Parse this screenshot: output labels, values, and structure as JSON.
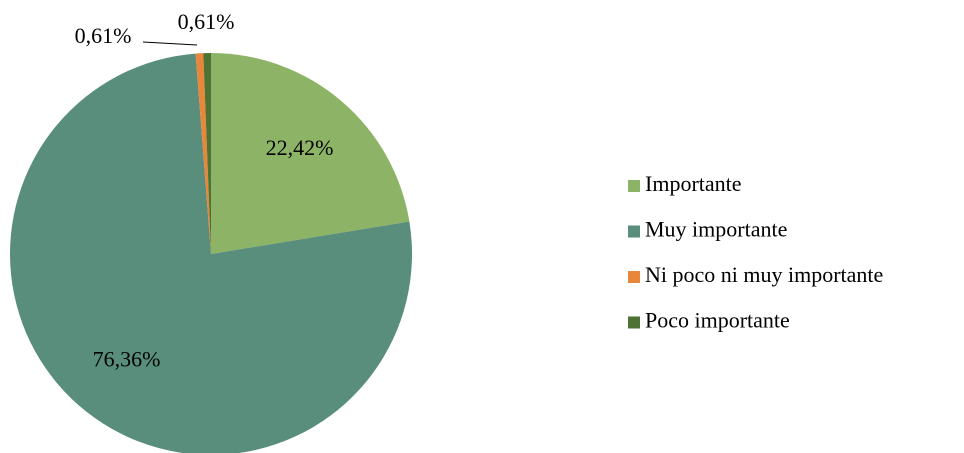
{
  "chart_data": {
    "type": "pie",
    "categories": [
      "Importante",
      "Muy importante",
      "Ni poco ni muy importante",
      "Poco importante"
    ],
    "values": [
      22.42,
      76.36,
      0.61,
      0.61
    ],
    "value_labels": [
      "22,42%",
      "76,36%",
      "0,61%",
      "0,61%"
    ],
    "colors": [
      "#8db466",
      "#588e7b",
      "#e8873a",
      "#4e7134"
    ],
    "legend": "right"
  }
}
